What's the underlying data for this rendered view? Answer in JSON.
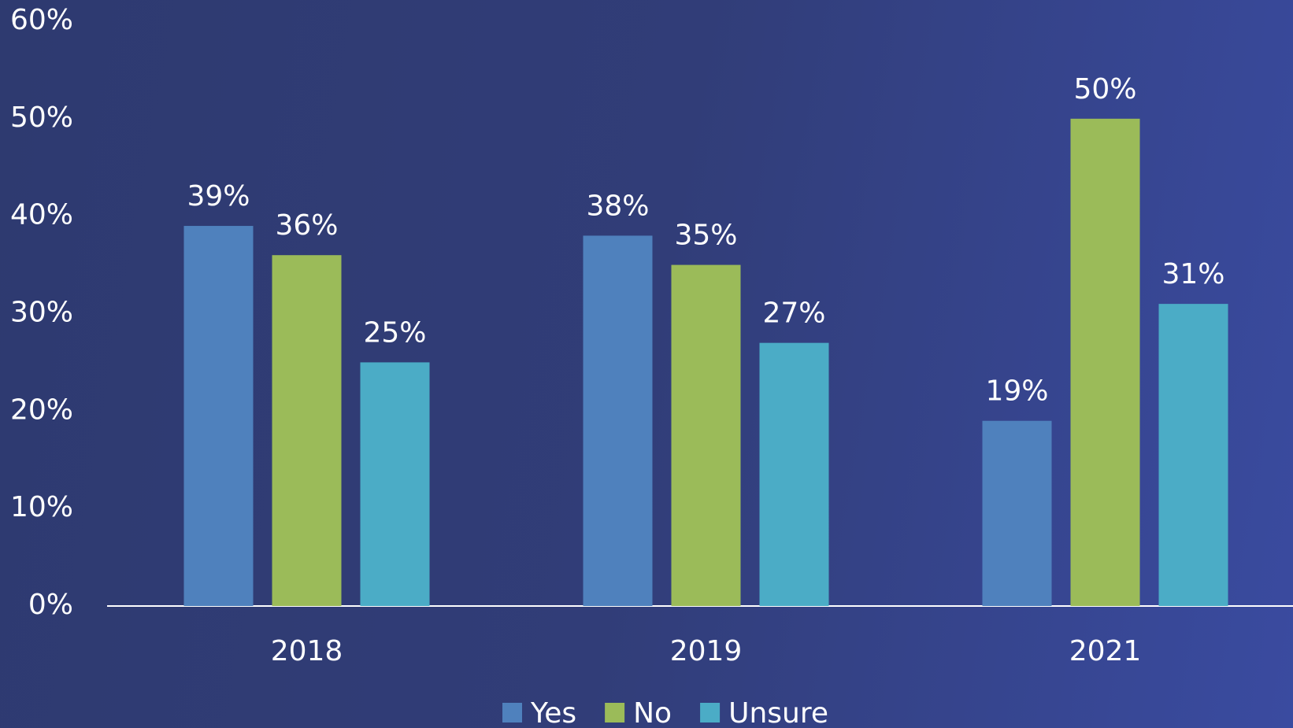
{
  "chart_data": {
    "type": "bar",
    "categories": [
      "2018",
      "2019",
      "2021"
    ],
    "series": [
      {
        "name": "Yes",
        "color": "#4f81bd",
        "values": [
          39,
          38,
          19
        ],
        "value_labels": [
          "39%",
          "38%",
          "19%"
        ]
      },
      {
        "name": "No",
        "color": "#9bbb59",
        "values": [
          36,
          35,
          50
        ],
        "value_labels": [
          "36%",
          "35%",
          "50%"
        ]
      },
      {
        "name": "Unsure",
        "color": "#4bacc6",
        "values": [
          25,
          27,
          31
        ],
        "value_labels": [
          "25%",
          "27%",
          "31%"
        ]
      }
    ],
    "ylim": [
      0,
      60
    ],
    "yticks": [
      {
        "value": 0,
        "label": "0%"
      },
      {
        "value": 10,
        "label": "10%"
      },
      {
        "value": 20,
        "label": "20%"
      },
      {
        "value": 30,
        "label": "30%"
      },
      {
        "value": 40,
        "label": "40%"
      },
      {
        "value": 50,
        "label": "50%"
      },
      {
        "value": 60,
        "label": "60%"
      }
    ],
    "grid": false,
    "legend": "bottom"
  }
}
